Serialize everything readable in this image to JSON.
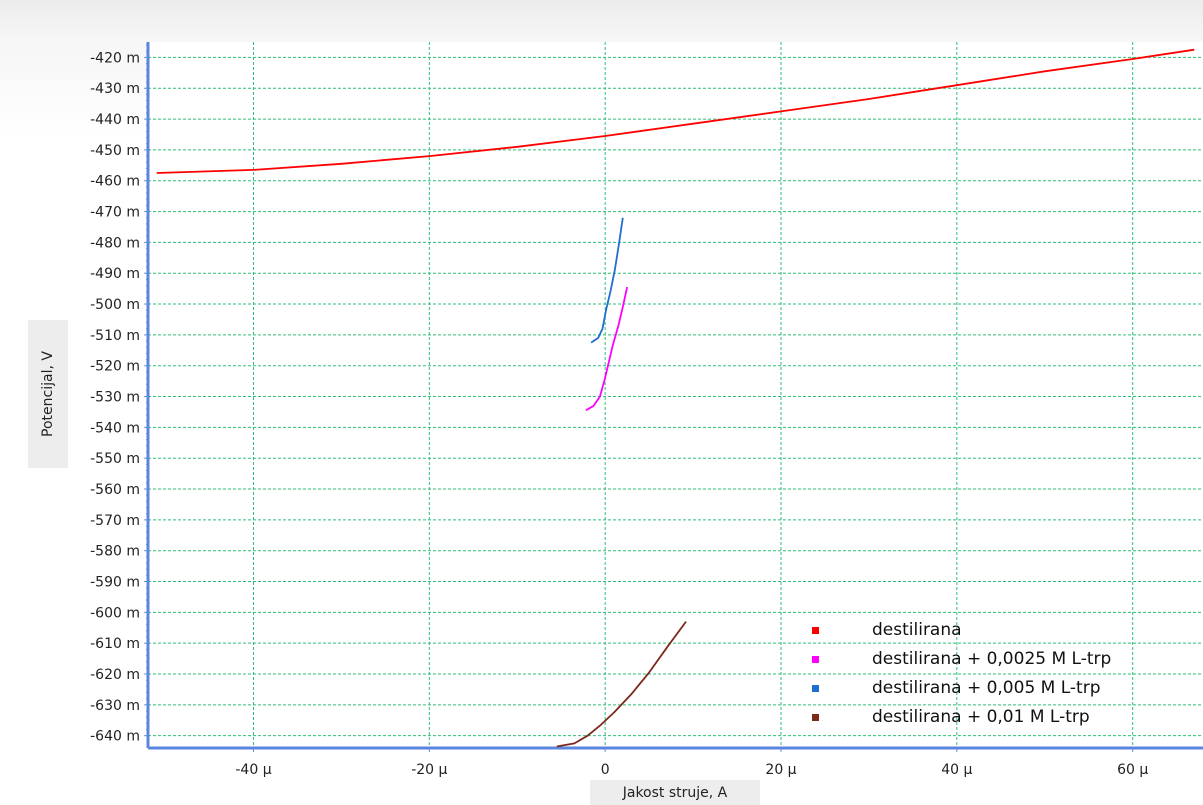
{
  "chart_data": {
    "type": "line",
    "title": "",
    "xlabel": "Jakost struje, A",
    "ylabel": "Potencijal, V",
    "xlim": [
      -52,
      68
    ],
    "ylim": [
      -644,
      -415
    ],
    "x_unit": "µ",
    "y_unit": "m",
    "xticks": [
      -40,
      -20,
      0,
      20,
      40,
      60
    ],
    "xtick_labels": [
      "-40 µ",
      "-20 µ",
      "0",
      "20 µ",
      "40 µ",
      "60 µ"
    ],
    "yticks": [
      -420,
      -430,
      -440,
      -450,
      -460,
      -470,
      -480,
      -490,
      -500,
      -510,
      -520,
      -530,
      -540,
      -550,
      -560,
      -570,
      -580,
      -590,
      -600,
      -610,
      -620,
      -630,
      -640
    ],
    "ytick_labels": [
      "-420 m",
      "-430 m",
      "-440 m",
      "-450 m",
      "-460 m",
      "-470 m",
      "-480 m",
      "-490 m",
      "-500 m",
      "-510 m",
      "-520 m",
      "-530 m",
      "-540 m",
      "-550 m",
      "-560 m",
      "-570 m",
      "-580 m",
      "-590 m",
      "-600 m",
      "-610 m",
      "-620 m",
      "-630 m",
      "-640 m"
    ],
    "grid": true,
    "legend_position": "bottom-right",
    "series": [
      {
        "name": "destilirana",
        "color": "#ff0000",
        "x": [
          -51,
          -40,
          -30,
          -20,
          -10,
          0,
          10,
          20,
          30,
          40,
          50,
          60,
          67
        ],
        "y": [
          -457.5,
          -456.5,
          -454.5,
          -452,
          -449,
          -445.5,
          -441.5,
          -437.5,
          -433.5,
          -429,
          -424.5,
          -420.5,
          -417.5
        ]
      },
      {
        "name": "destilirana + 0,0025 M L-trp",
        "color": "#ff00ff",
        "x": [
          -2.2,
          -1.3,
          -0.6,
          -0.1,
          0.4,
          0.9,
          1.5,
          2.0,
          2.5
        ],
        "y": [
          -534.5,
          -533,
          -530,
          -525,
          -519,
          -513,
          -507,
          -501,
          -494.5
        ]
      },
      {
        "name": "destilirana + 0,005 M L-trp",
        "color": "#1f6fd0",
        "x": [
          -1.6,
          -0.8,
          -0.3,
          0.1,
          0.6,
          1.1,
          1.6,
          2.0
        ],
        "y": [
          -512.5,
          -511,
          -508,
          -502,
          -496,
          -489,
          -480,
          -472
        ]
      },
      {
        "name": "destilirana + 0,01 M L-trp",
        "color": "#7b2a1a",
        "x": [
          -5.5,
          -3.5,
          -2,
          -0.5,
          1,
          3,
          5,
          7,
          9.2
        ],
        "y": [
          -643.5,
          -642.5,
          -640,
          -636.5,
          -632.5,
          -626.5,
          -619.5,
          -611.5,
          -603
        ]
      }
    ]
  }
}
